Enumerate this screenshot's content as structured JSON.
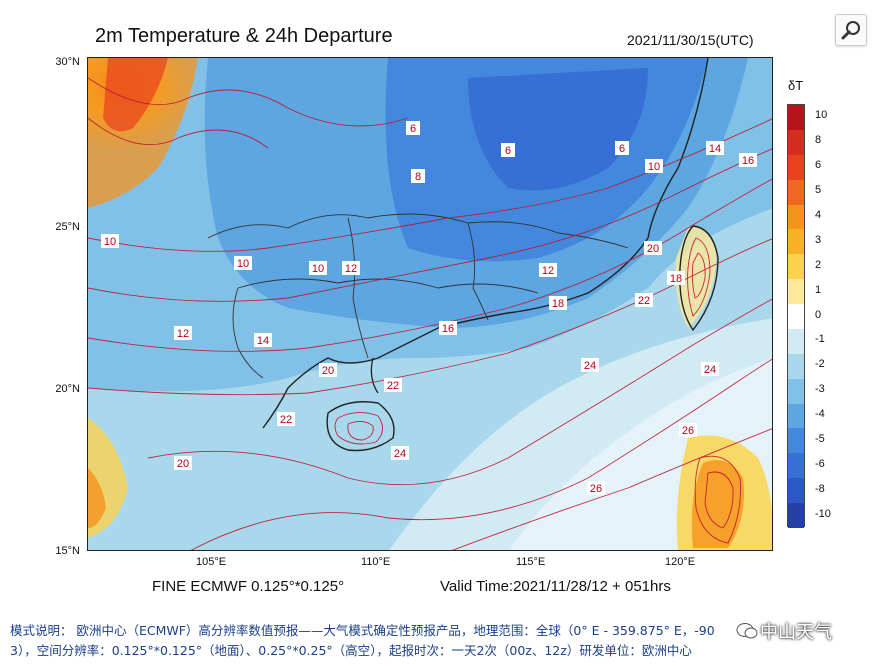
{
  "header": {
    "title": "2m Temperature & 24h Departure",
    "datetime": "2021/11/30/15(UTC)"
  },
  "toolbar": {
    "zoom_icon": "magnifier-icon"
  },
  "map": {
    "lat_labels": [
      "30°N",
      "25°N",
      "20°N",
      "15°N"
    ],
    "lon_labels": [
      "105°E",
      "110°E",
      "115°E",
      "120°E"
    ],
    "contour_labels": [
      "6",
      "6",
      "6",
      "8",
      "10",
      "10",
      "10",
      "10",
      "12",
      "12",
      "12",
      "14",
      "14",
      "16",
      "16",
      "18",
      "18",
      "20",
      "20",
      "20",
      "22",
      "22",
      "22",
      "24",
      "24",
      "24",
      "26",
      "26"
    ]
  },
  "colorbar": {
    "title": "δT",
    "labels": [
      "10",
      "8",
      "6",
      "5",
      "4",
      "3",
      "2",
      "1",
      "0",
      "-1",
      "-2",
      "-3",
      "-4",
      "-5",
      "-6",
      "-8",
      "-10"
    ],
    "colors": [
      "#b5141b",
      "#d42c1f",
      "#e8421e",
      "#f0671f",
      "#f5931d",
      "#f8b227",
      "#fbd24d",
      "#fde99a",
      "#ffffff",
      "#d2eaf4",
      "#a9d8ec",
      "#82c1e7",
      "#5da6e1",
      "#4488dd",
      "#3670d4",
      "#2a58c4",
      "#2240a6"
    ]
  },
  "footer": {
    "model": "FINE ECMWF 0.125°*0.125°",
    "valid": "Valid Time:2021/11/28/12 + 051hrs",
    "desc_line1": "模式说明： 欧洲中心（ECMWF）高分辨率数值预报——大气模式确定性预报产品，地理范围：全球（0° E - 359.875° E，-90",
    "desc_line2": "3），空间分辨率：0.125°*0.125°（地面）、0.25°*0.25°（高空），起报时次：一天2次（00z、12z）研发单位：欧洲中心",
    "watermark": "中山天气"
  }
}
